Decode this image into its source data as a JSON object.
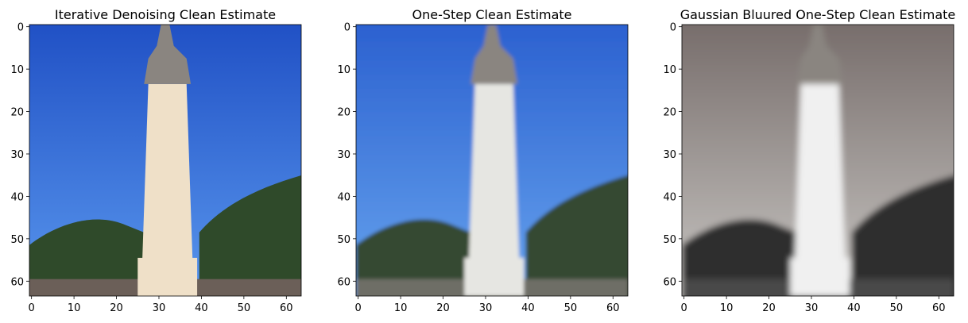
{
  "figure": {
    "panels": [
      {
        "title": "Iterative Denoising Clean Estimate",
        "xticks": [
          "0",
          "10",
          "20",
          "30",
          "40",
          "50",
          "60"
        ],
        "yticks": [
          "0",
          "10",
          "20",
          "30",
          "40",
          "50",
          "60"
        ],
        "colors": {
          "sky_top": "#1f4fc4",
          "sky_bottom": "#5a98ee",
          "tower": "#efe0c8",
          "trees": "#2f4a2a",
          "ground": "#6b5f58"
        }
      },
      {
        "title": "One-Step Clean Estimate",
        "xticks": [
          "0",
          "10",
          "20",
          "30",
          "40",
          "50",
          "60"
        ],
        "yticks": [
          "0",
          "10",
          "20",
          "30",
          "40",
          "50",
          "60"
        ],
        "colors": {
          "sky_top": "#2a5fcf",
          "sky_bottom": "#67a4ee",
          "tower": "#e6e6e2",
          "trees": "#364a32",
          "ground": "#6e6e66"
        }
      },
      {
        "title": "Gaussian Bluured One-Step Clean Estimate",
        "xticks": [
          "0",
          "10",
          "20",
          "30",
          "40",
          "50",
          "60"
        ],
        "yticks": [
          "0",
          "10",
          "20",
          "30",
          "40",
          "50",
          "60"
        ],
        "colors": {
          "sky_top": "#756b69",
          "sky_bottom": "#c9c7c4",
          "tower": "#f0f0f0",
          "trees": "#2e2e2e",
          "ground": "#4a4a4a"
        }
      }
    ]
  }
}
